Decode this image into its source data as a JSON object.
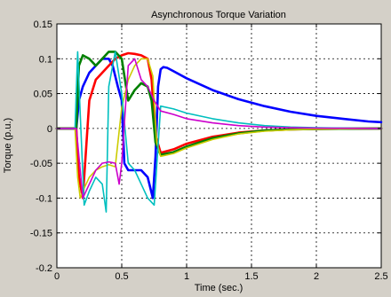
{
  "chart_data": {
    "type": "line",
    "title": "Asynchronous Torque Variation",
    "xlabel": "Time (sec.)",
    "ylabel": "Torque (p.u.)",
    "xlim": [
      0,
      2.5
    ],
    "ylim": [
      -0.2,
      0.15
    ],
    "grid": true,
    "grid_style": "dotted",
    "x_ticks": [
      0,
      0.5,
      1,
      1.5,
      2,
      2.5
    ],
    "x_tick_labels": [
      "0",
      "0.5",
      "1",
      "1.5",
      "2",
      "2.5"
    ],
    "y_ticks": [
      -0.2,
      -0.15,
      -0.1,
      -0.05,
      0,
      0.05,
      0.1,
      0.15
    ],
    "y_tick_labels": [
      "-0.2",
      "-0.15",
      "-0.1",
      "-0.05",
      "0",
      "0.05",
      "0.1",
      "0.15"
    ],
    "background": "#ffffff",
    "series": [
      {
        "color": "#0000ff",
        "width": 2.6,
        "x": [
          0,
          0.15,
          0.17,
          0.2,
          0.25,
          0.3,
          0.35,
          0.4,
          0.43,
          0.47,
          0.5,
          0.52,
          0.55,
          0.6,
          0.65,
          0.7,
          0.74,
          0.76,
          0.78,
          0.8,
          0.82,
          0.85,
          0.9,
          1.0,
          1.2,
          1.4,
          1.6,
          1.8,
          2.0,
          2.2,
          2.4,
          2.5
        ],
        "y": [
          0,
          0,
          0.04,
          0.06,
          0.08,
          0.09,
          0.1,
          0.1,
          0.09,
          0.06,
          0.04,
          -0.05,
          -0.06,
          -0.06,
          -0.06,
          -0.07,
          -0.1,
          -0.04,
          0.06,
          0.085,
          0.088,
          0.087,
          0.082,
          0.072,
          0.055,
          0.042,
          0.032,
          0.024,
          0.018,
          0.014,
          0.01,
          0.009
        ]
      },
      {
        "color": "#ff0000",
        "width": 2.6,
        "x": [
          0,
          0.15,
          0.17,
          0.2,
          0.25,
          0.3,
          0.35,
          0.4,
          0.45,
          0.5,
          0.55,
          0.6,
          0.65,
          0.7,
          0.73,
          0.76,
          0.8,
          0.9,
          1.0,
          1.2,
          1.4,
          1.6,
          1.8,
          2.0,
          2.5
        ],
        "y": [
          0,
          0,
          -0.07,
          -0.1,
          0.04,
          0.07,
          0.08,
          0.09,
          0.1,
          0.105,
          0.108,
          0.107,
          0.105,
          0.1,
          0.07,
          -0.01,
          -0.035,
          -0.03,
          -0.022,
          -0.012,
          -0.006,
          -0.003,
          -0.0015,
          -0.0007,
          0
        ]
      },
      {
        "color": "#008000",
        "width": 2.6,
        "x": [
          0,
          0.15,
          0.17,
          0.2,
          0.25,
          0.3,
          0.35,
          0.4,
          0.45,
          0.5,
          0.55,
          0.6,
          0.65,
          0.7,
          0.73,
          0.76,
          0.8,
          0.9,
          1.0,
          1.2,
          1.4,
          1.6,
          1.8,
          2.0,
          2.5
        ],
        "y": [
          0,
          0,
          0.09,
          0.105,
          0.1,
          0.09,
          0.1,
          0.11,
          0.11,
          0.1,
          0.04,
          0.055,
          0.065,
          0.06,
          0.04,
          -0.02,
          -0.038,
          -0.034,
          -0.026,
          -0.014,
          -0.007,
          -0.003,
          -0.0015,
          -0.0007,
          0
        ]
      },
      {
        "color": "#cccc00",
        "width": 1.6,
        "x": [
          0,
          0.14,
          0.16,
          0.18,
          0.2,
          0.25,
          0.3,
          0.35,
          0.4,
          0.45,
          0.5,
          0.55,
          0.6,
          0.65,
          0.7,
          0.74,
          0.77,
          0.8,
          0.9,
          1.0,
          1.2,
          1.4,
          1.6,
          1.8,
          2.0,
          2.5
        ],
        "y": [
          0,
          0,
          -0.07,
          -0.1,
          -0.09,
          -0.07,
          -0.06,
          -0.055,
          -0.052,
          -0.055,
          0.03,
          0.07,
          0.09,
          0.1,
          0.1,
          0.075,
          -0.02,
          -0.04,
          -0.036,
          -0.028,
          -0.016,
          -0.008,
          -0.004,
          -0.002,
          -0.001,
          0
        ]
      },
      {
        "color": "#00bfbf",
        "width": 1.6,
        "x": [
          0,
          0.14,
          0.16,
          0.18,
          0.21,
          0.25,
          0.3,
          0.35,
          0.38,
          0.4,
          0.45,
          0.5,
          0.55,
          0.6,
          0.65,
          0.7,
          0.75,
          0.8,
          0.9,
          1.0,
          1.2,
          1.4,
          1.6,
          1.8,
          2.0,
          2.5
        ],
        "y": [
          0,
          0,
          0.11,
          0.02,
          -0.11,
          -0.09,
          -0.07,
          -0.08,
          -0.12,
          0.06,
          0.11,
          0.05,
          -0.05,
          -0.06,
          -0.08,
          -0.1,
          -0.11,
          0.032,
          0.028,
          0.022,
          0.014,
          0.008,
          0.004,
          0.002,
          0.001,
          0
        ]
      },
      {
        "color": "#cc00cc",
        "width": 1.6,
        "x": [
          0,
          0.15,
          0.2,
          0.25,
          0.3,
          0.35,
          0.4,
          0.45,
          0.48,
          0.5,
          0.55,
          0.6,
          0.65,
          0.7,
          0.75,
          0.8,
          0.9,
          1.0,
          1.2,
          1.4,
          1.6,
          1.8,
          2.0,
          2.5
        ],
        "y": [
          0,
          0,
          -0.1,
          -0.08,
          -0.06,
          -0.05,
          -0.048,
          -0.05,
          -0.08,
          -0.05,
          0.09,
          0.1,
          0.07,
          0.06,
          0.04,
          0.025,
          0.02,
          0.014,
          0.008,
          0.004,
          0.002,
          0.001,
          0.0005,
          0
        ]
      }
    ]
  }
}
